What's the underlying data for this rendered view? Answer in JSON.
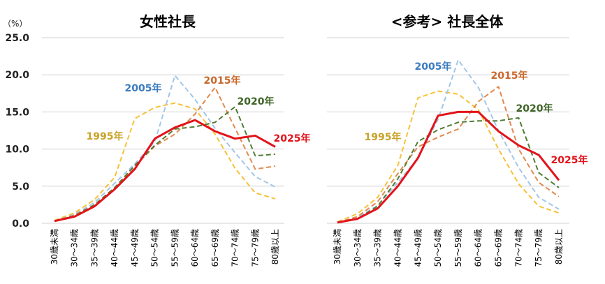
{
  "unit_label": "（%）",
  "colors": {
    "2025年": {
      "line": "#e3131b",
      "label": "#e3131b"
    },
    "1995年": {
      "line": "#f6c237",
      "label": "#c9a227"
    },
    "2005年": {
      "line": "#a3c6e8",
      "label": "#3a7bbf"
    },
    "2015年": {
      "line": "#e08a4e",
      "label": "#c8672a"
    },
    "2020年": {
      "line": "#4f7d34",
      "label": "#3e6426"
    }
  },
  "chart_data": [
    {
      "type": "line",
      "title": "女性社長",
      "xlabel": "",
      "ylabel": "%",
      "ylim": [
        0,
        25
      ],
      "yticks": [
        "0.0",
        "5.0",
        "10.0",
        "15.0",
        "20.0",
        "25.0"
      ],
      "grid": true,
      "categories": [
        "30歳未満",
        "30～34歳",
        "35～39歳",
        "40～44歳",
        "45～49歳",
        "50～54歳",
        "55～59歳",
        "60～64歳",
        "65～69歳",
        "70～74歳",
        "75～79歳",
        "80歳以上"
      ],
      "series": [
        {
          "name": "1995年",
          "style": "dashed",
          "values": [
            0.4,
            1.4,
            3.2,
            6.2,
            14.1,
            15.6,
            16.2,
            15.4,
            12.0,
            7.4,
            4.1,
            3.3
          ]
        },
        {
          "name": "2005年",
          "style": "dashed",
          "values": [
            0.3,
            1.2,
            2.8,
            5.4,
            8.0,
            11.0,
            19.9,
            16.7,
            12.8,
            9.5,
            6.3,
            4.9
          ]
        },
        {
          "name": "2015年",
          "style": "dashed",
          "values": [
            0.3,
            1.1,
            2.5,
            4.8,
            7.7,
            10.4,
            12.0,
            14.7,
            18.3,
            12.8,
            7.3,
            7.7
          ]
        },
        {
          "name": "2020年",
          "style": "dashed",
          "values": [
            0.3,
            1.0,
            2.5,
            4.8,
            7.8,
            10.5,
            12.7,
            13.0,
            13.6,
            15.7,
            9.1,
            9.3
          ]
        },
        {
          "name": "2025年",
          "style": "solid",
          "values": [
            0.3,
            0.9,
            2.3,
            4.6,
            7.3,
            11.4,
            12.9,
            13.9,
            12.4,
            11.4,
            11.8,
            10.3
          ]
        }
      ]
    },
    {
      "type": "line",
      "title": "<参考> 社長全体",
      "xlabel": "",
      "ylabel": "%",
      "ylim": [
        0,
        25
      ],
      "grid": true,
      "categories": [
        "30歳未満",
        "30～34歳",
        "35～39歳",
        "40～44歳",
        "45～49歳",
        "50～54歳",
        "55～59歳",
        "60～64歳",
        "65～69歳",
        "70～74歳",
        "75～79歳",
        "80歳以上"
      ],
      "series": [
        {
          "name": "1995年",
          "style": "dashed",
          "values": [
            0.2,
            1.3,
            3.5,
            7.8,
            16.9,
            17.8,
            17.4,
            15.3,
            10.0,
            5.3,
            2.3,
            1.4
          ]
        },
        {
          "name": "2005年",
          "style": "dashed",
          "values": [
            0.1,
            0.8,
            2.4,
            5.5,
            8.8,
            14.0,
            22.0,
            18.3,
            12.5,
            7.5,
            3.5,
            1.9
          ]
        },
        {
          "name": "2015年",
          "style": "dashed",
          "values": [
            0.1,
            0.9,
            2.9,
            6.7,
            10.3,
            11.6,
            12.7,
            16.4,
            18.4,
            10.0,
            5.5,
            3.6
          ]
        },
        {
          "name": "2020年",
          "style": "dashed",
          "values": [
            0.1,
            0.6,
            2.3,
            6.0,
            11.0,
            12.6,
            13.6,
            13.8,
            13.8,
            14.2,
            6.8,
            4.8
          ]
        },
        {
          "name": "2025年",
          "style": "solid",
          "values": [
            0.1,
            0.6,
            2.0,
            5.0,
            8.8,
            14.5,
            15.0,
            15.0,
            12.4,
            10.5,
            9.2,
            5.8
          ]
        }
      ]
    }
  ]
}
